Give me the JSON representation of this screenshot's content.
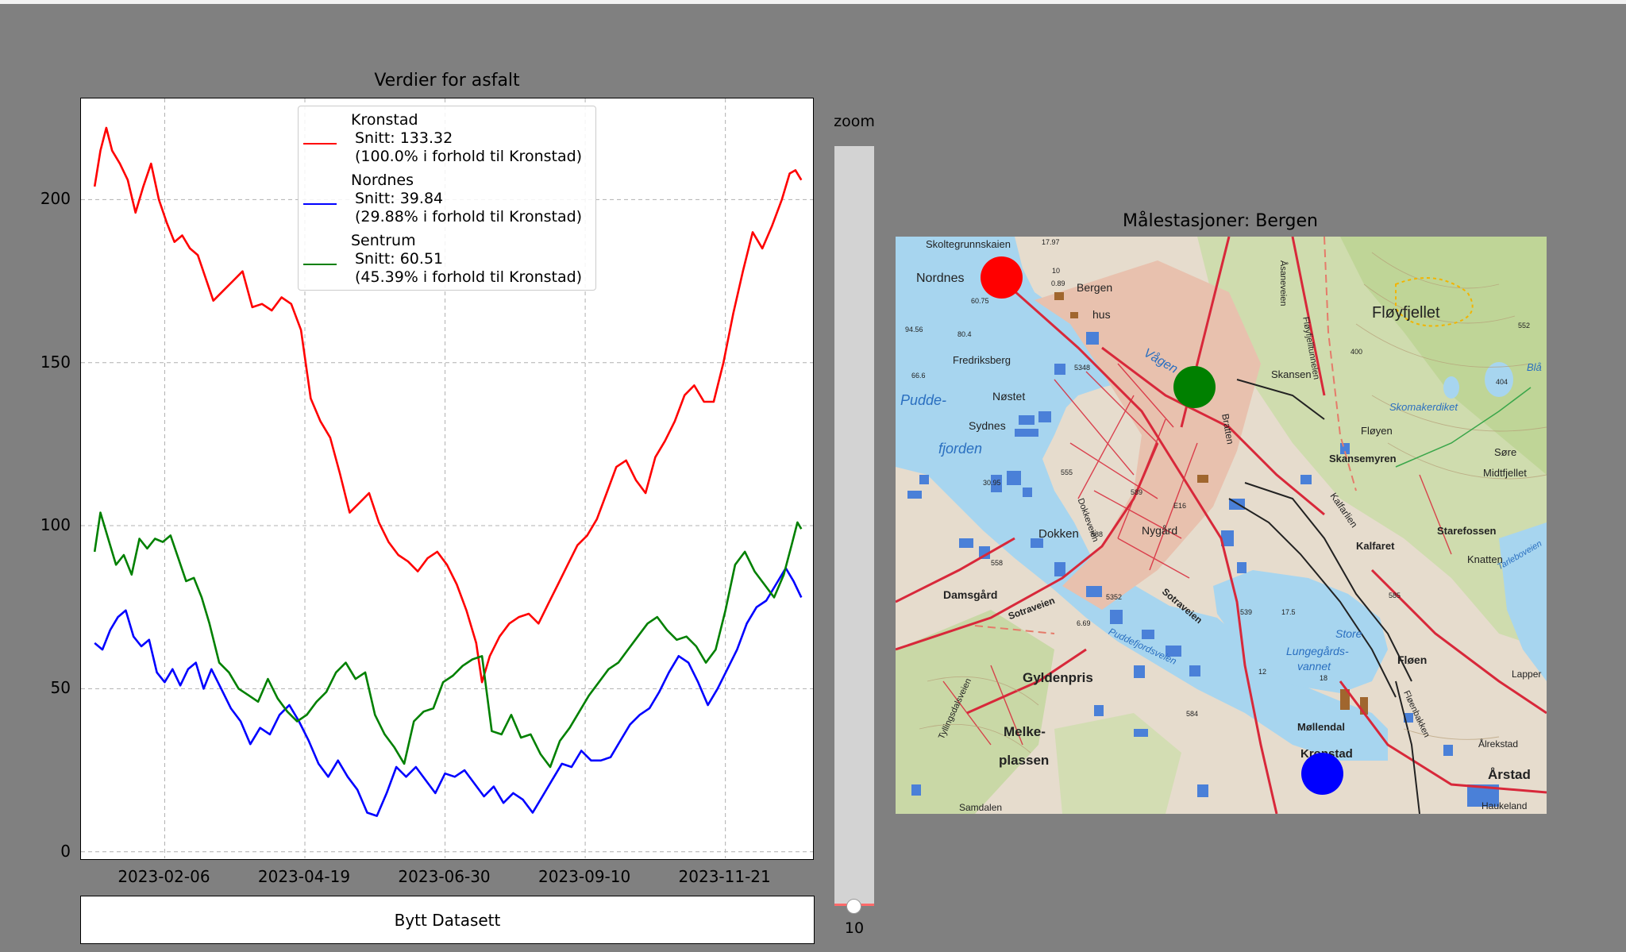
{
  "chart_data": {
    "type": "line",
    "title": "Verdier for asfalt",
    "xlabel": "",
    "ylabel": "",
    "x_range": [
      "2023-01-01",
      "2023-12-31"
    ],
    "xlim": [
      "2022-12-25",
      "2024-01-05"
    ],
    "ylim": [
      -2,
      231
    ],
    "grid": true,
    "legend_position": "top-center",
    "yticks": [
      0,
      50,
      100,
      150,
      200
    ],
    "xticks": [
      "2023-02-06",
      "2023-04-19",
      "2023-06-30",
      "2023-09-10",
      "2023-11-21"
    ],
    "series": [
      {
        "name": "Kronstad",
        "color": "#ff0000",
        "mean_label": "Snitt: 133.32",
        "ratio_label": "(100.0% i forhold til Kronstad)",
        "mean": 133.32,
        "points": [
          [
            "2023-01-01",
            204
          ],
          [
            "2023-01-04",
            215
          ],
          [
            "2023-01-07",
            222
          ],
          [
            "2023-01-10",
            215
          ],
          [
            "2023-01-14",
            211
          ],
          [
            "2023-01-18",
            206
          ],
          [
            "2023-01-22",
            196
          ],
          [
            "2023-01-26",
            204
          ],
          [
            "2023-01-30",
            211
          ],
          [
            "2023-02-03",
            200
          ],
          [
            "2023-02-07",
            193
          ],
          [
            "2023-02-11",
            187
          ],
          [
            "2023-02-15",
            189
          ],
          [
            "2023-02-19",
            185
          ],
          [
            "2023-02-23",
            183
          ],
          [
            "2023-02-27",
            176
          ],
          [
            "2023-03-03",
            169
          ],
          [
            "2023-03-08",
            172
          ],
          [
            "2023-03-13",
            175
          ],
          [
            "2023-03-18",
            178
          ],
          [
            "2023-03-23",
            167
          ],
          [
            "2023-03-28",
            168
          ],
          [
            "2023-04-02",
            166
          ],
          [
            "2023-04-07",
            170
          ],
          [
            "2023-04-12",
            168
          ],
          [
            "2023-04-17",
            160
          ],
          [
            "2023-04-22",
            139
          ],
          [
            "2023-04-27",
            132
          ],
          [
            "2023-05-02",
            127
          ],
          [
            "2023-05-07",
            116
          ],
          [
            "2023-05-12",
            104
          ],
          [
            "2023-05-17",
            107
          ],
          [
            "2023-05-22",
            110
          ],
          [
            "2023-05-27",
            101
          ],
          [
            "2023-06-01",
            95
          ],
          [
            "2023-06-06",
            91
          ],
          [
            "2023-06-11",
            89
          ],
          [
            "2023-06-16",
            86
          ],
          [
            "2023-06-21",
            90
          ],
          [
            "2023-06-26",
            92
          ],
          [
            "2023-07-01",
            88
          ],
          [
            "2023-07-06",
            82
          ],
          [
            "2023-07-11",
            74
          ],
          [
            "2023-07-16",
            64
          ],
          [
            "2023-07-19",
            52
          ],
          [
            "2023-07-23",
            60
          ],
          [
            "2023-07-28",
            66
          ],
          [
            "2023-08-02",
            70
          ],
          [
            "2023-08-07",
            72
          ],
          [
            "2023-08-12",
            73
          ],
          [
            "2023-08-17",
            70
          ],
          [
            "2023-08-22",
            76
          ],
          [
            "2023-08-27",
            82
          ],
          [
            "2023-09-01",
            88
          ],
          [
            "2023-09-06",
            94
          ],
          [
            "2023-09-11",
            97
          ],
          [
            "2023-09-16",
            102
          ],
          [
            "2023-09-21",
            110
          ],
          [
            "2023-09-26",
            118
          ],
          [
            "2023-10-01",
            120
          ],
          [
            "2023-10-06",
            114
          ],
          [
            "2023-10-11",
            110
          ],
          [
            "2023-10-16",
            121
          ],
          [
            "2023-10-21",
            126
          ],
          [
            "2023-10-26",
            132
          ],
          [
            "2023-10-31",
            140
          ],
          [
            "2023-11-05",
            143
          ],
          [
            "2023-11-10",
            138
          ],
          [
            "2023-11-15",
            138
          ],
          [
            "2023-11-20",
            150
          ],
          [
            "2023-11-25",
            165
          ],
          [
            "2023-11-30",
            178
          ],
          [
            "2023-12-05",
            190
          ],
          [
            "2023-12-10",
            185
          ],
          [
            "2023-12-15",
            192
          ],
          [
            "2023-12-20",
            200
          ],
          [
            "2023-12-24",
            208
          ],
          [
            "2023-12-27",
            209
          ],
          [
            "2023-12-30",
            206
          ]
        ]
      },
      {
        "name": "Nordnes",
        "color": "#0000ff",
        "mean_label": "Snitt: 39.84",
        "ratio_label": "(29.88% i forhold til Kronstad)",
        "mean": 39.84,
        "points": [
          [
            "2023-01-01",
            64
          ],
          [
            "2023-01-05",
            62
          ],
          [
            "2023-01-09",
            68
          ],
          [
            "2023-01-13",
            72
          ],
          [
            "2023-01-17",
            74
          ],
          [
            "2023-01-21",
            66
          ],
          [
            "2023-01-25",
            63
          ],
          [
            "2023-01-29",
            65
          ],
          [
            "2023-02-02",
            55
          ],
          [
            "2023-02-06",
            52
          ],
          [
            "2023-02-10",
            56
          ],
          [
            "2023-02-14",
            51
          ],
          [
            "2023-02-18",
            56
          ],
          [
            "2023-02-22",
            58
          ],
          [
            "2023-02-26",
            50
          ],
          [
            "2023-03-02",
            56
          ],
          [
            "2023-03-07",
            50
          ],
          [
            "2023-03-12",
            44
          ],
          [
            "2023-03-17",
            40
          ],
          [
            "2023-03-22",
            33
          ],
          [
            "2023-03-27",
            38
          ],
          [
            "2023-04-01",
            36
          ],
          [
            "2023-04-06",
            42
          ],
          [
            "2023-04-11",
            45
          ],
          [
            "2023-04-16",
            40
          ],
          [
            "2023-04-21",
            34
          ],
          [
            "2023-04-26",
            27
          ],
          [
            "2023-05-01",
            23
          ],
          [
            "2023-05-06",
            28
          ],
          [
            "2023-05-11",
            23
          ],
          [
            "2023-05-16",
            19
          ],
          [
            "2023-05-21",
            12
          ],
          [
            "2023-05-26",
            11
          ],
          [
            "2023-05-31",
            18
          ],
          [
            "2023-06-05",
            26
          ],
          [
            "2023-06-10",
            23
          ],
          [
            "2023-06-15",
            26
          ],
          [
            "2023-06-20",
            22
          ],
          [
            "2023-06-25",
            18
          ],
          [
            "2023-06-30",
            24
          ],
          [
            "2023-07-05",
            23
          ],
          [
            "2023-07-10",
            25
          ],
          [
            "2023-07-15",
            21
          ],
          [
            "2023-07-20",
            17
          ],
          [
            "2023-07-25",
            20
          ],
          [
            "2023-07-30",
            15
          ],
          [
            "2023-08-04",
            18
          ],
          [
            "2023-08-09",
            16
          ],
          [
            "2023-08-14",
            12
          ],
          [
            "2023-08-19",
            17
          ],
          [
            "2023-08-24",
            22
          ],
          [
            "2023-08-29",
            27
          ],
          [
            "2023-09-03",
            26
          ],
          [
            "2023-09-08",
            31
          ],
          [
            "2023-09-13",
            28
          ],
          [
            "2023-09-18",
            28
          ],
          [
            "2023-09-23",
            29
          ],
          [
            "2023-09-28",
            34
          ],
          [
            "2023-10-03",
            39
          ],
          [
            "2023-10-08",
            42
          ],
          [
            "2023-10-13",
            44
          ],
          [
            "2023-10-18",
            49
          ],
          [
            "2023-10-23",
            55
          ],
          [
            "2023-10-28",
            60
          ],
          [
            "2023-11-02",
            58
          ],
          [
            "2023-11-07",
            52
          ],
          [
            "2023-11-12",
            45
          ],
          [
            "2023-11-17",
            50
          ],
          [
            "2023-11-22",
            56
          ],
          [
            "2023-11-27",
            62
          ],
          [
            "2023-12-02",
            70
          ],
          [
            "2023-12-07",
            75
          ],
          [
            "2023-12-12",
            77
          ],
          [
            "2023-12-17",
            82
          ],
          [
            "2023-12-22",
            87
          ],
          [
            "2023-12-26",
            83
          ],
          [
            "2023-12-30",
            78
          ]
        ]
      },
      {
        "name": "Sentrum",
        "color": "#008000",
        "mean_label": "Snitt: 60.51",
        "ratio_label": "(45.39% i forhold til Kronstad)",
        "mean": 60.51,
        "points": [
          [
            "2023-01-01",
            92
          ],
          [
            "2023-01-04",
            104
          ],
          [
            "2023-01-08",
            96
          ],
          [
            "2023-01-12",
            88
          ],
          [
            "2023-01-16",
            91
          ],
          [
            "2023-01-20",
            85
          ],
          [
            "2023-01-24",
            96
          ],
          [
            "2023-01-28",
            93
          ],
          [
            "2023-02-01",
            96
          ],
          [
            "2023-02-05",
            95
          ],
          [
            "2023-02-09",
            97
          ],
          [
            "2023-02-13",
            90
          ],
          [
            "2023-02-17",
            83
          ],
          [
            "2023-02-21",
            84
          ],
          [
            "2023-02-25",
            78
          ],
          [
            "2023-03-01",
            70
          ],
          [
            "2023-03-06",
            58
          ],
          [
            "2023-03-11",
            55
          ],
          [
            "2023-03-16",
            50
          ],
          [
            "2023-03-21",
            48
          ],
          [
            "2023-03-26",
            46
          ],
          [
            "2023-03-31",
            53
          ],
          [
            "2023-04-05",
            47
          ],
          [
            "2023-04-10",
            43
          ],
          [
            "2023-04-15",
            40
          ],
          [
            "2023-04-20",
            42
          ],
          [
            "2023-04-25",
            46
          ],
          [
            "2023-04-30",
            49
          ],
          [
            "2023-05-05",
            55
          ],
          [
            "2023-05-10",
            58
          ],
          [
            "2023-05-15",
            53
          ],
          [
            "2023-05-20",
            55
          ],
          [
            "2023-05-25",
            42
          ],
          [
            "2023-05-30",
            36
          ],
          [
            "2023-06-04",
            32
          ],
          [
            "2023-06-09",
            27
          ],
          [
            "2023-06-14",
            40
          ],
          [
            "2023-06-19",
            43
          ],
          [
            "2023-06-24",
            44
          ],
          [
            "2023-06-29",
            52
          ],
          [
            "2023-07-04",
            54
          ],
          [
            "2023-07-09",
            57
          ],
          [
            "2023-07-14",
            59
          ],
          [
            "2023-07-19",
            60
          ],
          [
            "2023-07-24",
            37
          ],
          [
            "2023-07-29",
            36
          ],
          [
            "2023-08-03",
            42
          ],
          [
            "2023-08-08",
            35
          ],
          [
            "2023-08-13",
            36
          ],
          [
            "2023-08-18",
            30
          ],
          [
            "2023-08-23",
            26
          ],
          [
            "2023-08-28",
            34
          ],
          [
            "2023-09-02",
            38
          ],
          [
            "2023-09-07",
            43
          ],
          [
            "2023-09-12",
            48
          ],
          [
            "2023-09-17",
            52
          ],
          [
            "2023-09-22",
            56
          ],
          [
            "2023-09-27",
            58
          ],
          [
            "2023-10-02",
            62
          ],
          [
            "2023-10-07",
            66
          ],
          [
            "2023-10-12",
            70
          ],
          [
            "2023-10-17",
            72
          ],
          [
            "2023-10-22",
            68
          ],
          [
            "2023-10-27",
            65
          ],
          [
            "2023-11-01",
            66
          ],
          [
            "2023-11-06",
            63
          ],
          [
            "2023-11-11",
            58
          ],
          [
            "2023-11-16",
            62
          ],
          [
            "2023-11-21",
            74
          ],
          [
            "2023-11-26",
            88
          ],
          [
            "2023-12-01",
            92
          ],
          [
            "2023-12-06",
            86
          ],
          [
            "2023-12-11",
            82
          ],
          [
            "2023-12-16",
            78
          ],
          [
            "2023-12-21",
            85
          ],
          [
            "2023-12-25",
            94
          ],
          [
            "2023-12-28",
            101
          ],
          [
            "2023-12-30",
            99
          ]
        ]
      }
    ]
  },
  "button": {
    "label": "Bytt Datasett"
  },
  "zoom": {
    "label": "zoom",
    "value": "10",
    "fraction": 0.0
  },
  "map": {
    "title": "Målestasjoner: Bergen",
    "stations": [
      {
        "name": "Nordnes",
        "color": "#ff0000"
      },
      {
        "name": "Sentrum",
        "color": "#008000"
      },
      {
        "name": "Kronstad",
        "color": "#0000ff"
      }
    ],
    "labels": {
      "skoltegrunnskaien": "Skoltegrunnskaien",
      "num1797": "17.97",
      "nordnes": "Nordnes",
      "bergenhus": "Bergen",
      "hus": "hus",
      "num6075": "60.75",
      "num1": "10",
      "num089": "0.89",
      "asaneveien": "Åsaneveien",
      "floyfjelltunnelen": "Fløyfjelltunnelen",
      "floyfjellet": "Fløyfjellet",
      "num552": "552",
      "num9456": "94.56",
      "num804": "80.4",
      "fredriksberg": "Fredriksberg",
      "num5348": "5348",
      "vagen": "Vågen",
      "num400": "400",
      "skansen": "Skansen",
      "num404": "404",
      "bla": "Blå",
      "pudde": "Pudde-",
      "num666": "66.6",
      "nostet": "Nøstet",
      "skomakerdiket": "Skomakerdiket",
      "sydnes": "Sydnes",
      "bratten": "Bratten",
      "floyen": "Fløyen",
      "fjorden": "fjorden",
      "skansemyren": "Skansemyren",
      "sore": "Søre",
      "midtfjellet": "Midtfjellet",
      "num3095": "30.95",
      "num555": "555",
      "num589": "589",
      "e16": "E16",
      "kalfarlien": "Kalfarlien",
      "dokkeveien": "Dokkeveien",
      "dokken": "Dokken",
      "num588": "588",
      "nygard": "Nygård",
      "starefossen": "Starefossen",
      "kalfaret": "Kalfaret",
      "knatten": "Knatten",
      "tarleboveien": "Tarleboveien",
      "num558": "558",
      "num5352": "5352",
      "sotraveien": "Sotraveien",
      "num585": "585",
      "damsgard": "Damsgård",
      "sotraveien2": "Sotraveien",
      "num669": "6.69",
      "puddefjordsveien": "Puddefjordsveien",
      "num539": "539",
      "num175": "17.5",
      "store": "Store",
      "lungegards": "Lungegårds-",
      "vannet": "vannet",
      "floen": "Fløen",
      "lapper": "Lapper",
      "gyldenpris": "Gyldenpris",
      "num12": "12",
      "num18": "18",
      "floenbakken": "Fløenbakken",
      "num584": "584",
      "tyllingsdalsveien": "Tyllingsdalsveien",
      "melke": "Melke-",
      "mollendal": "Møllendal",
      "plassen": "plassen",
      "kronstad": "Kronstad",
      "alrekstad": "Ålrekstad",
      "arstad": "Årstad",
      "samdalen": "Samdalen",
      "haukeland": "Haukeland"
    }
  }
}
